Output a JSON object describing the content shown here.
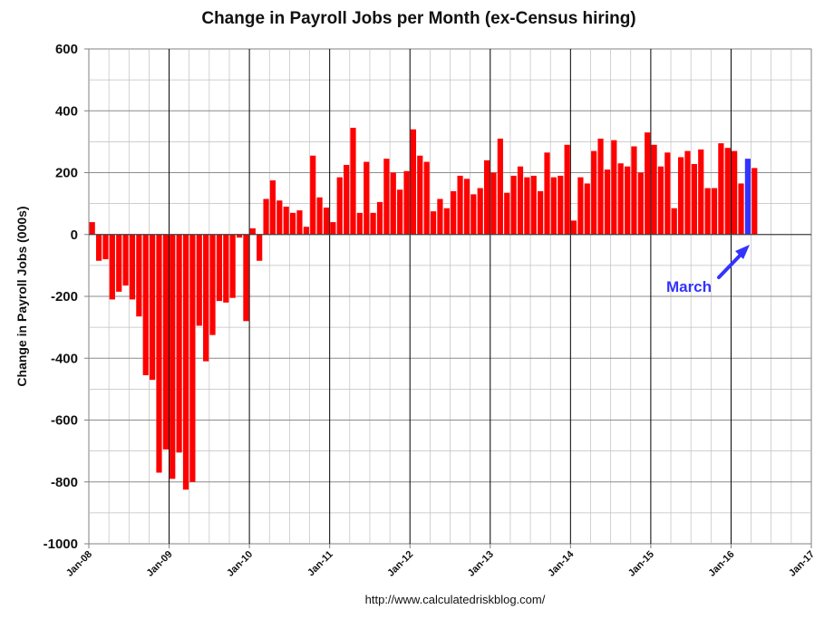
{
  "chart_data": {
    "type": "bar",
    "title": "Change in Payroll Jobs per Month (ex-Census hiring)",
    "xlabel": "",
    "ylabel": "Change in Payroll Jobs (000s)",
    "ylim": [
      -1000,
      600
    ],
    "yticks": [
      "600",
      "400",
      "200",
      "0",
      "-200",
      "-400",
      "-600",
      "-800",
      "-1000"
    ],
    "xticks": [
      "Jan-08",
      "Jan-09",
      "Jan-10",
      "Jan-11",
      "Jan-12",
      "Jan-13",
      "Jan-14",
      "Jan-15",
      "Jan-16",
      "Jan-17"
    ],
    "start_month": "Jan-08",
    "grid": true,
    "colors": {
      "bar": "#ff0000",
      "highlight": "#3333ff",
      "axis": "#000000",
      "grid": "#bfbfbf"
    },
    "values": [
      40,
      -85,
      -80,
      -210,
      -185,
      -165,
      -210,
      -265,
      -455,
      -470,
      -770,
      -695,
      -790,
      -705,
      -825,
      -800,
      -295,
      -410,
      -325,
      -215,
      -220,
      -205,
      -10,
      -280,
      20,
      -85,
      115,
      175,
      110,
      90,
      70,
      78,
      25,
      255,
      120,
      87,
      40,
      185,
      225,
      345,
      70,
      235,
      70,
      105,
      245,
      200,
      145,
      205,
      340,
      255,
      235,
      75,
      115,
      85,
      140,
      190,
      180,
      130,
      150,
      240,
      200,
      310,
      135,
      190,
      220,
      185,
      190,
      140,
      265,
      185,
      190,
      290,
      45,
      185,
      165,
      270,
      310,
      210,
      305,
      230,
      220,
      285,
      200,
      330,
      290,
      220,
      265,
      85,
      250,
      270,
      228,
      275,
      150,
      150,
      295,
      280,
      270,
      165,
      245,
      215
    ],
    "highlight_index": 98,
    "annotation": {
      "text": "March",
      "color": "#3333ff"
    },
    "source": "http://www.calculatedriskblog.com/"
  }
}
